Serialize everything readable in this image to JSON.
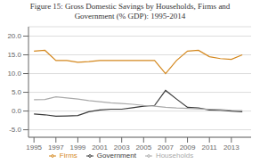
{
  "chart_data": {
    "type": "line",
    "title": "Figure 15: Gross Domestic Savings by Households, Firms and\nGovernment (% GDP): 1995-2014",
    "x": [
      1995,
      1996,
      1997,
      1998,
      1999,
      2000,
      2001,
      2002,
      2003,
      2004,
      2005,
      2006,
      2007,
      2008,
      2009,
      2010,
      2011,
      2012,
      2013,
      2014
    ],
    "series": [
      {
        "name": "Firms",
        "color": "#d4881e",
        "values": [
          16.0,
          16.2,
          13.5,
          13.5,
          13.0,
          13.2,
          13.5,
          13.5,
          13.5,
          13.5,
          13.5,
          13.5,
          10.0,
          13.5,
          16.0,
          16.2,
          14.5,
          14.0,
          13.8,
          15.0
        ]
      },
      {
        "name": "Government",
        "color": "#3a3a3a",
        "values": [
          -0.8,
          -1.0,
          -1.4,
          -1.3,
          -1.2,
          -0.2,
          0.3,
          0.5,
          0.5,
          0.9,
          1.3,
          1.5,
          5.5,
          3.2,
          1.0,
          0.8,
          0.3,
          0.2,
          0.0,
          -0.2
        ]
      },
      {
        "name": "Households",
        "color": "#aaaaaa",
        "values": [
          3.0,
          3.1,
          3.8,
          3.5,
          3.2,
          2.8,
          2.5,
          2.2,
          2.0,
          1.8,
          1.5,
          1.3,
          1.0,
          0.8,
          0.7,
          0.6,
          0.5,
          0.4,
          0.2,
          0.1
        ]
      }
    ],
    "xlim": [
      1994.5,
      2014.8
    ],
    "xticks": [
      1995,
      1997,
      1999,
      2001,
      2003,
      2005,
      2007,
      2009,
      2011,
      2013
    ],
    "ylim": [
      -7.0,
      22.5
    ],
    "yticks": [
      {
        "value": -5.0,
        "label": "-5.0"
      },
      {
        "value": 0.0,
        "label": "0.0"
      },
      {
        "value": 5.0,
        "label": "5.0"
      },
      {
        "value": 10.0,
        "label": "10.0"
      },
      {
        "value": 15.0,
        "label": "15.0"
      },
      {
        "value": 20.0,
        "label": "20.0"
      }
    ],
    "grid": true,
    "legend": "bottom"
  }
}
